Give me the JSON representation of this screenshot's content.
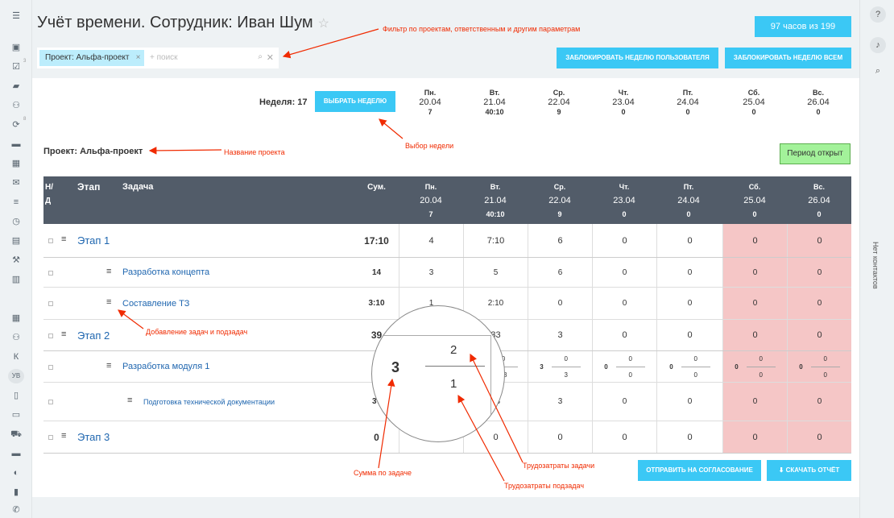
{
  "header": {
    "title": "Учёт времени. Сотрудник: Иван Шум",
    "hours": "97 часов из 199"
  },
  "filter": {
    "chip": "Проект: Альфа-проект",
    "placeholder": "+ поиск"
  },
  "buttons": {
    "lock_user": "Заблокировать неделю пользователя",
    "lock_all": "Заблокировать неделю всем",
    "choose_week": "Выбрать неделю",
    "send": "Отправить на согласование",
    "download": "Скачать отчёт",
    "period": "Период открыт"
  },
  "week": {
    "label": "Неделя: 17",
    "days": [
      {
        "d": "Пн.",
        "date": "20.04",
        "total": "7"
      },
      {
        "d": "Вт.",
        "date": "21.04",
        "total": "40:10"
      },
      {
        "d": "Ср.",
        "date": "22.04",
        "total": "9"
      },
      {
        "d": "Чт.",
        "date": "23.04",
        "total": "0"
      },
      {
        "d": "Пт.",
        "date": "24.04",
        "total": "0"
      },
      {
        "d": "Сб.",
        "date": "25.04",
        "total": "0"
      },
      {
        "d": "Вс.",
        "date": "26.04",
        "total": "0"
      }
    ]
  },
  "project": "Проект: Альфа-проект",
  "table": {
    "h_nd": "Н/ Д",
    "h_stage": "Этап",
    "h_task": "Задача",
    "h_sum": "Сум.",
    "rows": [
      {
        "level": 0,
        "name": "Этап 1",
        "sum": "17:10",
        "v": [
          "4",
          "7:10",
          "6",
          "0",
          "0",
          "0",
          "0"
        ]
      },
      {
        "level": 1,
        "name": "Разработка концепта",
        "sum": "14",
        "v": [
          "3",
          "5",
          "6",
          "0",
          "0",
          "0",
          "0"
        ]
      },
      {
        "level": 1,
        "name": "Составление ТЗ",
        "sum": "3:10",
        "v": [
          "1",
          "2:10",
          "0",
          "0",
          "0",
          "0",
          "0"
        ]
      },
      {
        "level": 0,
        "name": "Этап 2",
        "sum": "39",
        "v": [
          "3",
          "33",
          "3",
          "0",
          "0",
          "0",
          "0"
        ]
      },
      {
        "level": 1,
        "name": "Разработка модуля 1",
        "sum": "39",
        "frac": true,
        "v": [
          [
            "3",
            "2",
            "1"
          ],
          [
            "33",
            "0",
            "33"
          ],
          [
            "3",
            "0",
            "3"
          ],
          [
            "0",
            "0",
            "0"
          ],
          [
            "0",
            "0",
            "0"
          ],
          [
            "0",
            "0",
            "0"
          ],
          [
            "0",
            "0",
            "0"
          ]
        ]
      },
      {
        "level": 2,
        "name": "Подготовка технической документации",
        "sum": "37",
        "v": [
          "1",
          "33",
          "3",
          "0",
          "0",
          "0",
          "0"
        ]
      },
      {
        "level": 0,
        "name": "Этап 3",
        "sum": "0",
        "v": [
          "0",
          "0",
          "0",
          "0",
          "0",
          "0",
          "0"
        ]
      }
    ]
  },
  "magnifier": {
    "sum": "3",
    "top": "2",
    "bottom": "1"
  },
  "annotations": {
    "filter": "Фильтр по проектам, ответственным и другим параметрам",
    "week": "Выбор недели",
    "project": "Название проекта",
    "add": "Добавление задач и подзадач",
    "task_sum": "Сумма по задаче",
    "task_cost": "Трудозатраты задачи",
    "sub_cost": "Трудозатраты подзадач"
  },
  "right_sidebar": {
    "no_contacts": "Нет контактов"
  },
  "left_sidebar": {
    "k": "К",
    "avatar": "УВ",
    "badge1": "3",
    "badge2": "8"
  },
  "colors": {
    "accent": "#3bc8f5",
    "header": "#525c69",
    "weekend": "#f5c6c6",
    "annotation": "#f02a00"
  }
}
